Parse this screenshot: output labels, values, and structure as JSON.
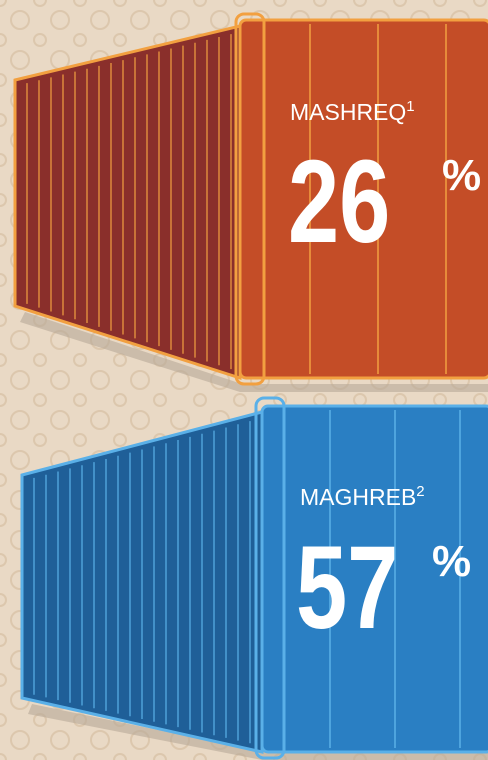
{
  "containers": [
    {
      "label": "MASHREQ",
      "footnote": "1",
      "value": 26,
      "unit": "%"
    },
    {
      "label": "MAGHREB",
      "footnote": "2",
      "value": 57,
      "unit": "%"
    }
  ]
}
